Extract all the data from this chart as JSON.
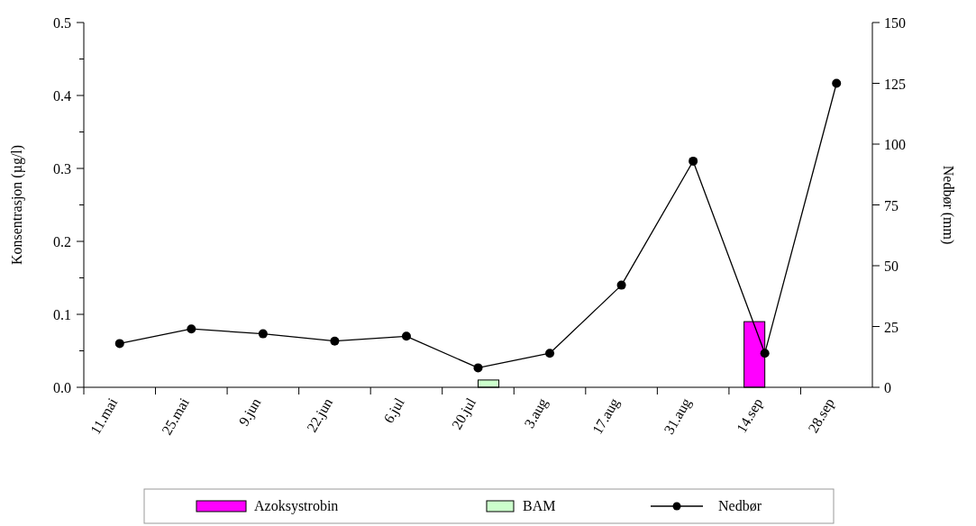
{
  "chart_data": {
    "type": "bar",
    "ylabel": "Konsentrasjon (µg/l)",
    "y2label": "Nedbør (mm)",
    "categories": [
      "11.mai",
      "25.mai",
      "9.jun",
      "22.jun",
      "6.jul",
      "20.jul",
      "3.aug",
      "17.aug",
      "31.aug",
      "14.sep",
      "28.sep"
    ],
    "series": [
      {
        "name": "Azoksystrobin",
        "color": "#ff00ff",
        "values": [
          null,
          null,
          null,
          null,
          null,
          null,
          null,
          null,
          null,
          0.09,
          null
        ]
      },
      {
        "name": "BAM",
        "color": "#ccffcc",
        "values": [
          null,
          null,
          null,
          null,
          null,
          0.01,
          null,
          null,
          null,
          null,
          null
        ]
      },
      {
        "name": "Nedbør",
        "type": "line",
        "axis": "y2",
        "color": "#000000",
        "marker": "circle",
        "values": [
          18,
          24,
          22,
          19,
          21,
          8,
          14,
          42,
          93,
          14,
          125
        ]
      }
    ],
    "ylim": [
      0,
      0.5
    ],
    "yticks": [
      {
        "value": 0,
        "label": "0.0"
      },
      {
        "value": 0.05,
        "label": null
      },
      0.1,
      {
        "value": 0.15,
        "label": null
      },
      0.2,
      {
        "value": 0.25,
        "label": null
      },
      0.3,
      {
        "value": 0.35,
        "label": null
      },
      0.4,
      {
        "value": 0.45,
        "label": null
      },
      0.5
    ],
    "y2lim": [
      0,
      150
    ],
    "y2ticks": [
      0,
      25,
      50,
      75,
      100,
      125,
      150
    ],
    "grid": false,
    "legend": "bottom"
  }
}
